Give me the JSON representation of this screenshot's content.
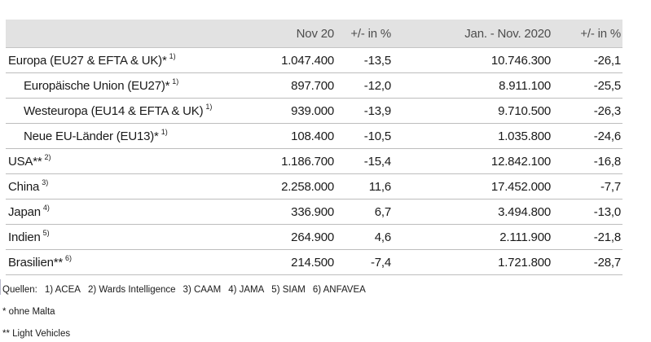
{
  "colors": {
    "header_bg": "#e2e2e2",
    "row_divider": "#bdbdbd",
    "body_text": "#1a1a1a",
    "header_text": "#4d4d4d"
  },
  "table": {
    "header": {
      "month": "Nov 20",
      "month_pct": "+/- in %",
      "ytd": "Jan. - Nov. 2020",
      "ytd_pct": "+/- in %"
    },
    "rows": [
      {
        "label": "Europa (EU27 & EFTA & UK)*",
        "sup": "1)",
        "nov": "1.047.400",
        "nov_pct": "-13,5",
        "ytd": "10.746.300",
        "ytd_pct": "-26,1"
      },
      {
        "label": "Europäische Union (EU27)*",
        "sup": "1)",
        "nov": "897.700",
        "nov_pct": "-12,0",
        "ytd": "8.911.100",
        "ytd_pct": "-25,5"
      },
      {
        "label": "Westeuropa (EU14 & EFTA & UK)",
        "sup": "1)",
        "nov": "939.000",
        "nov_pct": "-13,9",
        "ytd": "9.710.500",
        "ytd_pct": "-26,3"
      },
      {
        "label": "Neue EU-Länder (EU13)*",
        "sup": "1)",
        "nov": "108.400",
        "nov_pct": "-10,5",
        "ytd": "1.035.800",
        "ytd_pct": "-24,6"
      },
      {
        "label": "USA**",
        "sup": "2)",
        "nov": "1.186.700",
        "nov_pct": "-15,4",
        "ytd": "12.842.100",
        "ytd_pct": "-16,8"
      },
      {
        "label": "China",
        "sup": "3)",
        "nov": "2.258.000",
        "nov_pct": "11,6",
        "ytd": "17.452.000",
        "ytd_pct": "-7,7"
      },
      {
        "label": "Japan",
        "sup": "4)",
        "nov": "336.900",
        "nov_pct": "6,7",
        "ytd": "3.494.800",
        "ytd_pct": "-13,0"
      },
      {
        "label": "Indien",
        "sup": "5)",
        "nov": "264.900",
        "nov_pct": "4,6",
        "ytd": "2.111.900",
        "ytd_pct": "-21,8"
      },
      {
        "label": "Brasilien**",
        "sup": "6)",
        "nov": "214.500",
        "nov_pct": "-7,4",
        "ytd": "1.721.800",
        "ytd_pct": "-28,7"
      }
    ]
  },
  "footnotes": {
    "sources_label": "Quellen:",
    "sources": [
      "1) ACEA",
      "2) Wards Intelligence",
      "3) CAAM",
      "4) JAMA",
      "5) SIAM",
      "6) ANFAVEA"
    ],
    "note_star": "* ohne Malta",
    "note_doublestar": "** Light Vehicles"
  }
}
